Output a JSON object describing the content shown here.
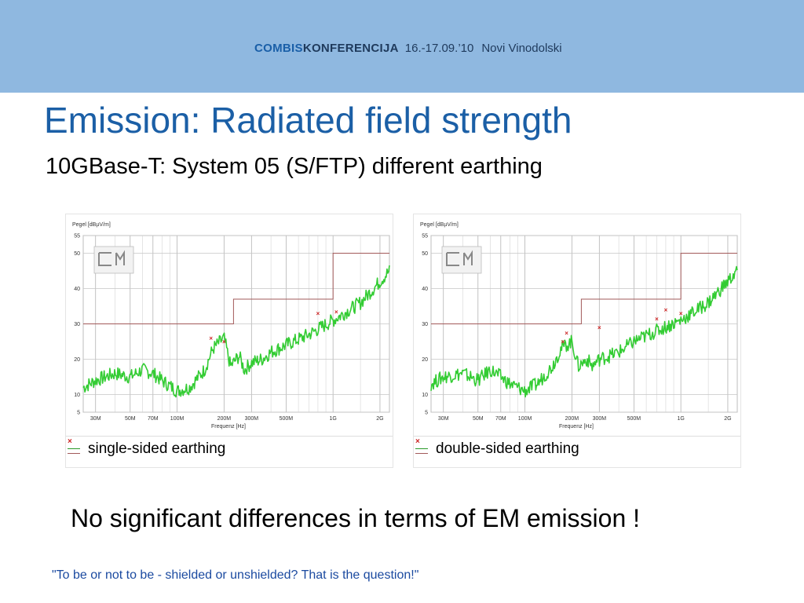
{
  "banner": {
    "brand_part1": "COMBIS",
    "brand_part2": "KONFERENCIJA",
    "dates": "16.-17.09.’10",
    "location": "Novi Vinodolski"
  },
  "slide": {
    "title": "Emission: Radiated field strength",
    "subtitle": "10GBase-T: System 05 (S/FTP) different earthing",
    "conclusion": "No significant differences in terms of EM emission !",
    "quote": "\"To be or not to be - shielded or unshielded? That is the question!\""
  },
  "colors": {
    "banner_bg": "#8fb8e0",
    "title": "#1b5fa6",
    "trace": "#33cc33",
    "limit_line": "#a25a5a",
    "marker": "#cc2222",
    "quote": "#1b4aa0"
  },
  "chart_data": [
    {
      "type": "line",
      "y_axis_label": "Pegel [dBµV/m]",
      "x_axis_label": "Frequenz [Hz]",
      "x_scale": "log",
      "x_range_hz": [
        25000000,
        2300000000
      ],
      "ylim": [
        5,
        55
      ],
      "y_ticks": [
        5,
        10,
        20,
        30,
        40,
        50,
        55
      ],
      "x_ticks": [
        {
          "label": "30M",
          "hz": 30000000
        },
        {
          "label": "50M",
          "hz": 50000000
        },
        {
          "label": "70M",
          "hz": 70000000
        },
        {
          "label": "100M",
          "hz": 100000000
        },
        {
          "label": "200M",
          "hz": 200000000
        },
        {
          "label": "300M",
          "hz": 300000000
        },
        {
          "label": "500M",
          "hz": 500000000
        },
        {
          "label": "1G",
          "hz": 1000000000
        },
        {
          "label": "2G",
          "hz": 2000000000
        }
      ],
      "grid": true,
      "legend_label": "single-sided earthing",
      "series": [
        {
          "kind": "measurement",
          "x_hz": [
            25000000,
            30000000,
            40000000,
            50000000,
            60000000,
            70000000,
            80000000,
            100000000,
            120000000,
            150000000,
            170000000,
            200000000,
            220000000,
            250000000,
            270000000,
            300000000,
            350000000,
            400000000,
            500000000,
            700000000,
            1000000000,
            1500000000,
            2000000000,
            2300000000
          ],
          "y_dbuv": [
            12,
            14,
            16,
            15,
            17,
            16,
            14,
            11,
            12,
            17,
            23,
            26,
            18,
            21,
            17,
            19,
            20,
            22,
            24,
            27,
            31,
            36,
            42,
            45
          ]
        },
        {
          "kind": "limit",
          "x_hz": [
            25000000,
            230000000,
            230000000,
            1000000000,
            1000000000,
            2300000000
          ],
          "y_dbuv": [
            30,
            30,
            37,
            37,
            50,
            50
          ]
        },
        {
          "kind": "markers",
          "x_hz": [
            165000000,
            200000000,
            800000000,
            1050000000
          ],
          "y_dbuv": [
            26,
            25,
            33,
            33.5
          ]
        }
      ]
    },
    {
      "type": "line",
      "y_axis_label": "Pegel [dBµV/m]",
      "x_axis_label": "Frequenz [Hz]",
      "x_scale": "log",
      "x_range_hz": [
        25000000,
        2300000000
      ],
      "ylim": [
        5,
        55
      ],
      "y_ticks": [
        5,
        10,
        20,
        30,
        40,
        50,
        55
      ],
      "x_ticks": [
        {
          "label": "30M",
          "hz": 30000000
        },
        {
          "label": "50M",
          "hz": 50000000
        },
        {
          "label": "70M",
          "hz": 70000000
        },
        {
          "label": "100M",
          "hz": 100000000
        },
        {
          "label": "200M",
          "hz": 200000000
        },
        {
          "label": "300M",
          "hz": 300000000
        },
        {
          "label": "500M",
          "hz": 500000000
        },
        {
          "label": "1G",
          "hz": 1000000000
        },
        {
          "label": "2G",
          "hz": 2000000000
        }
      ],
      "grid": true,
      "legend_label": "double-sided earthing",
      "series": [
        {
          "kind": "measurement",
          "x_hz": [
            25000000,
            30000000,
            40000000,
            50000000,
            60000000,
            70000000,
            80000000,
            100000000,
            120000000,
            150000000,
            170000000,
            200000000,
            220000000,
            250000000,
            270000000,
            300000000,
            350000000,
            400000000,
            500000000,
            700000000,
            1000000000,
            1500000000,
            2000000000,
            2300000000
          ],
          "y_dbuv": [
            13,
            15,
            16,
            14,
            17,
            15,
            13,
            11,
            13,
            18,
            23,
            25,
            18,
            20,
            18,
            20,
            21,
            22,
            25,
            28,
            31,
            36,
            42,
            45
          ]
        },
        {
          "kind": "limit",
          "x_hz": [
            25000000,
            230000000,
            230000000,
            1000000000,
            1000000000,
            2300000000
          ],
          "y_dbuv": [
            30,
            30,
            37,
            37,
            50,
            50
          ]
        },
        {
          "kind": "markers",
          "x_hz": [
            175000000,
            185000000,
            300000000,
            700000000,
            800000000,
            1000000000
          ],
          "y_dbuv": [
            25,
            27.5,
            29,
            31.5,
            34,
            33
          ]
        }
      ]
    }
  ]
}
